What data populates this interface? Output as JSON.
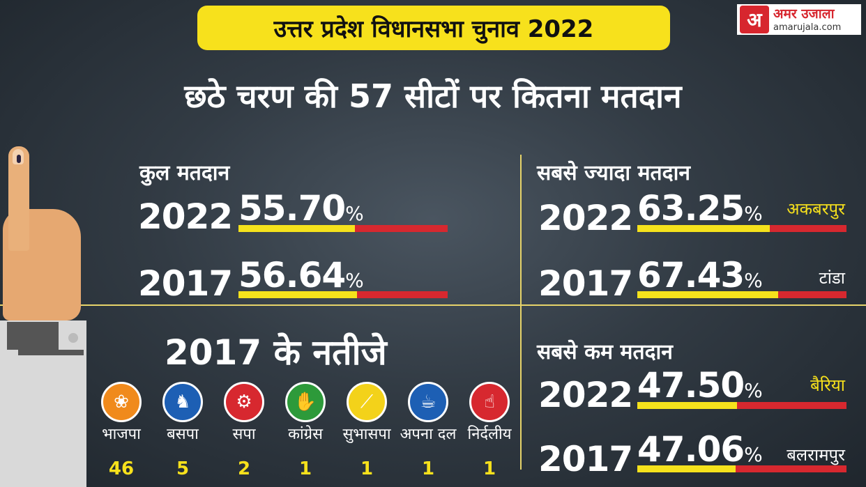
{
  "header": {
    "title": "उत्तर प्रदेश विधानसभा चुनाव 2022",
    "subtitle": "छठे चरण की 57 सीटों पर कितना मतदान"
  },
  "logo": {
    "mark": "अ",
    "name_hi": "अमर उजाला",
    "name_en": "amarujala.com"
  },
  "total_turnout": {
    "heading": "कुल मतदान",
    "rows": [
      {
        "year": "2022",
        "value": "55.70",
        "unit": "%",
        "fill_pct": 55.7
      },
      {
        "year": "2017",
        "value": "56.64",
        "unit": "%",
        "fill_pct": 56.64
      }
    ]
  },
  "highest_turnout": {
    "heading": "सबसे ज्यादा मतदान",
    "rows": [
      {
        "year": "2022",
        "value": "63.25",
        "unit": "%",
        "place": "अकबरपुर",
        "fill_pct": 63.25
      },
      {
        "year": "2017",
        "value": "67.43",
        "unit": "%",
        "place": "टांडा",
        "fill_pct": 67.43
      }
    ]
  },
  "lowest_turnout": {
    "heading": "सबसे कम मतदान",
    "rows": [
      {
        "year": "2022",
        "value": "47.50",
        "unit": "%",
        "place": "बैरिया",
        "fill_pct": 47.5
      },
      {
        "year": "2017",
        "value": "47.06",
        "unit": "%",
        "place": "बलरामपुर",
        "fill_pct": 47.06
      }
    ]
  },
  "results_2017": {
    "heading": "2017 के नतीजे",
    "parties": [
      {
        "name": "भाजपा",
        "seats": "46",
        "icon": "lotus-icon",
        "color": "#f08a1c",
        "glyph": "❀"
      },
      {
        "name": "बसपा",
        "seats": "5",
        "icon": "elephant-icon",
        "color": "#1d5fb4",
        "glyph": "♞"
      },
      {
        "name": "सपा",
        "seats": "2",
        "icon": "bicycle-icon",
        "color": "#d7282f",
        "glyph": "⚙"
      },
      {
        "name": "कांग्रेस",
        "seats": "1",
        "icon": "hand-icon",
        "color": "#2d9a3a",
        "glyph": "✋"
      },
      {
        "name": "सुभासपा",
        "seats": "1",
        "icon": "stick-icon",
        "color": "#f3d21a",
        "glyph": "⟋"
      },
      {
        "name": "अपना दल",
        "seats": "1",
        "icon": "cup-icon",
        "color": "#1d5fb4",
        "glyph": "☕"
      },
      {
        "name": "निर्दलीय",
        "seats": "1",
        "icon": "independent-icon",
        "color": "#d7282f",
        "glyph": "☝"
      }
    ]
  },
  "colors": {
    "accent_yellow": "#f7e11c",
    "bar_red": "#d7282f",
    "brand_red": "#d7262e"
  }
}
